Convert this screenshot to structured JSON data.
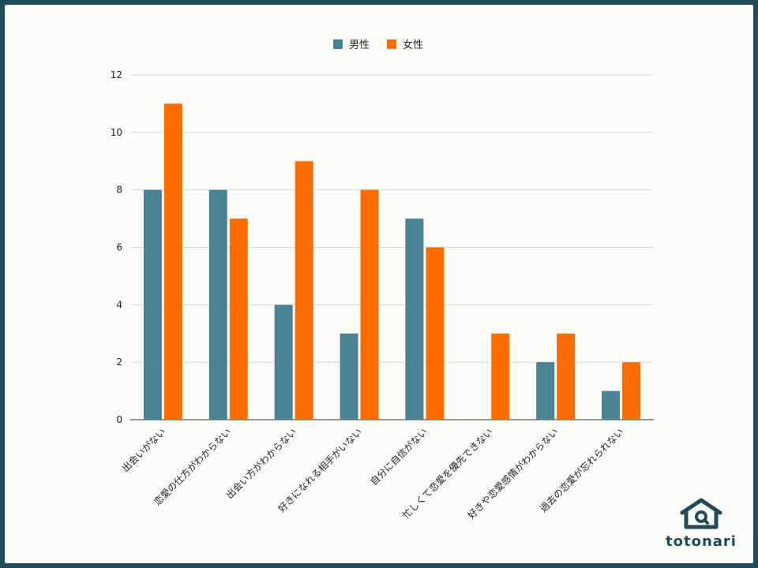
{
  "chart_data": {
    "type": "bar",
    "categories": [
      "出会いがない",
      "恋愛の仕方がわからない",
      "出会い方がわからない",
      "好きになれる相手がいない",
      "自分に自信がない",
      "忙しくて恋愛を優先できない",
      "好きや恋愛感情がわからない",
      "過去の恋愛が忘れられない"
    ],
    "series": [
      {
        "name": "男性",
        "values": [
          8,
          8,
          4,
          3,
          7,
          0,
          2,
          1
        ],
        "color": "#4a8394"
      },
      {
        "name": "女性",
        "values": [
          11,
          7,
          9,
          8,
          6,
          3,
          3,
          2
        ],
        "color": "#ff6d01"
      }
    ],
    "ylim": [
      0,
      12
    ],
    "yticks": [
      0,
      2,
      4,
      6,
      8,
      10,
      12
    ],
    "grid": true,
    "legend": "top-center"
  },
  "logo": {
    "text": "totonari",
    "icon": "house-logo-icon",
    "color": "#1f4b59"
  }
}
